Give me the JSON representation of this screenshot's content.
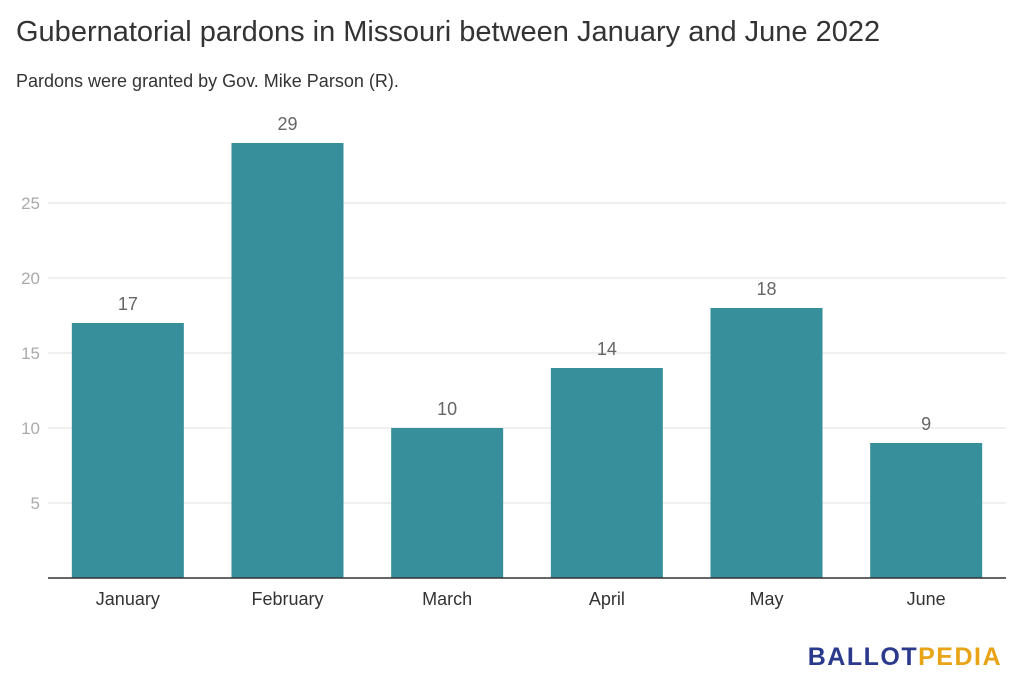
{
  "chart_data": {
    "type": "bar",
    "title": "Gubernatorial pardons in Missouri between January and June 2022",
    "subtitle": "Pardons were granted by Gov. Mike Parson (R).",
    "categories": [
      "January",
      "February",
      "March",
      "April",
      "May",
      "June"
    ],
    "values": [
      17,
      29,
      10,
      14,
      18,
      9
    ],
    "ylim": [
      0,
      29
    ],
    "yticks": [
      5,
      10,
      15,
      20,
      25
    ],
    "grid": true,
    "bar_color": "#368f9a",
    "xlabel": "",
    "ylabel": ""
  },
  "branding": {
    "logo_part1": "BALLOT",
    "logo_part2": "PEDIA",
    "logo_color_1": "#2b3a8c",
    "logo_color_2": "#e8a317"
  }
}
